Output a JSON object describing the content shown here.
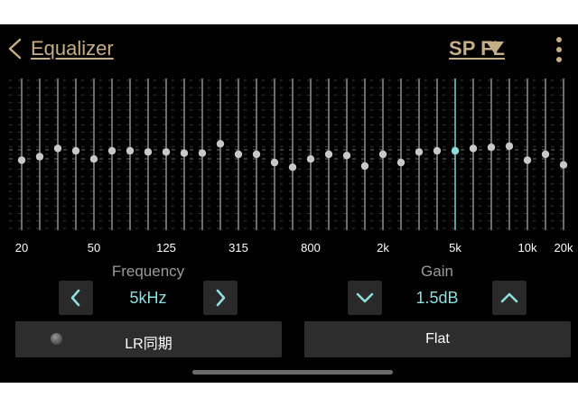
{
  "header": {
    "title": "Equalizer",
    "channel": "SP FL"
  },
  "eq": {
    "selected_band": "5k",
    "bands": [
      {
        "label": "20",
        "gain": -2.5
      },
      {
        "label": "",
        "gain": -1.0
      },
      {
        "label": "",
        "gain": 2.5
      },
      {
        "label": "",
        "gain": 1.5
      },
      {
        "label": "50",
        "gain": -2.0
      },
      {
        "label": "",
        "gain": 1.5
      },
      {
        "label": "",
        "gain": 1.5
      },
      {
        "label": "",
        "gain": 1.0
      },
      {
        "label": "125",
        "gain": 1.0
      },
      {
        "label": "",
        "gain": 0.5
      },
      {
        "label": "",
        "gain": 0.5
      },
      {
        "label": "",
        "gain": 4.5
      },
      {
        "label": "315",
        "gain": 0.0
      },
      {
        "label": "",
        "gain": 0.0
      },
      {
        "label": "",
        "gain": -3.5
      },
      {
        "label": "",
        "gain": -5.5
      },
      {
        "label": "800",
        "gain": -2.0
      },
      {
        "label": "",
        "gain": 0.0
      },
      {
        "label": "",
        "gain": -0.5
      },
      {
        "label": "",
        "gain": -5.0
      },
      {
        "label": "2k",
        "gain": 0.0
      },
      {
        "label": "",
        "gain": -3.5
      },
      {
        "label": "",
        "gain": 1.0
      },
      {
        "label": "",
        "gain": 1.5
      },
      {
        "label": "5k",
        "gain": 1.5
      },
      {
        "label": "",
        "gain": 2.5
      },
      {
        "label": "",
        "gain": 3.0
      },
      {
        "label": "",
        "gain": 3.5
      },
      {
        "label": "10k",
        "gain": -2.5
      },
      {
        "label": "",
        "gain": 0.0
      },
      {
        "label": "20k",
        "gain": -4.5
      }
    ]
  },
  "frequency": {
    "label": "Frequency",
    "value": "5kHz"
  },
  "gain": {
    "label": "Gain",
    "value": "1.5dB"
  },
  "buttons": {
    "lr_sync": "LR同期",
    "flat": "Flat"
  },
  "colors": {
    "background": "#000000",
    "header_text": "#c5ad85",
    "accent": "#8fdede",
    "knob": "#c8c8c8",
    "button_bg": "#2d2d2d"
  }
}
